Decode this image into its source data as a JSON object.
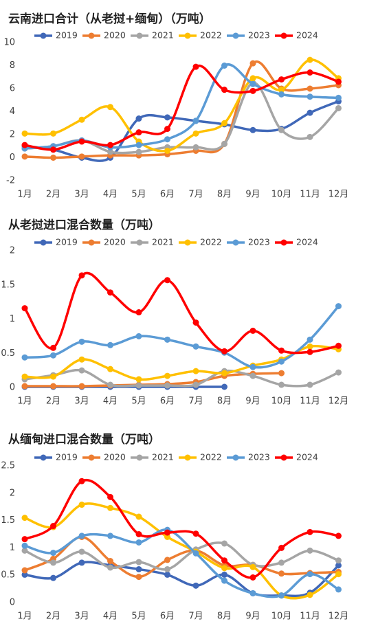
{
  "chart_data": [
    {
      "type": "line",
      "title": "云南进口合计（从老挝+缅甸）（万吨）",
      "categories": [
        "1月",
        "2月",
        "3月",
        "4月",
        "5月",
        "6月",
        "7月",
        "8月",
        "9月",
        "10月",
        "11月",
        "12月"
      ],
      "ylim": [
        -2,
        10
      ],
      "yticks": [
        -2,
        0,
        2,
        4,
        6,
        8,
        10
      ],
      "grid": false,
      "legend": "top",
      "smooth": true,
      "series": [
        {
          "name": "2019",
          "color": "#4068b8",
          "values": [
            1.0,
            0.7,
            0.0,
            0.0,
            3.4,
            3.5,
            3.2,
            2.9,
            2.4,
            2.5,
            3.9,
            4.9
          ]
        },
        {
          "name": "2020",
          "color": "#ed7d31",
          "values": [
            0.1,
            0.0,
            0.1,
            0.2,
            0.2,
            0.3,
            0.6,
            1.2,
            8.2,
            6.0,
            6.0,
            6.3
          ]
        },
        {
          "name": "2021",
          "color": "#a5a5a5",
          "values": [
            0.8,
            1.0,
            1.5,
            0.5,
            0.5,
            0.9,
            0.9,
            1.2,
            6.5,
            2.4,
            1.8,
            4.3
          ]
        },
        {
          "name": "2022",
          "color": "#ffc000",
          "values": [
            2.1,
            2.1,
            3.3,
            4.4,
            1.4,
            0.6,
            2.1,
            3.0,
            6.9,
            5.9,
            8.5,
            6.9
          ]
        },
        {
          "name": "2023",
          "color": "#5b9bd5",
          "values": [
            0.8,
            1.0,
            1.5,
            0.9,
            1.1,
            1.6,
            3.2,
            8.0,
            6.4,
            5.5,
            5.3,
            5.2
          ]
        },
        {
          "name": "2024",
          "color": "#ff0000",
          "values": [
            1.1,
            0.7,
            1.4,
            1.1,
            2.2,
            2.5,
            7.9,
            5.9,
            5.8,
            6.8,
            7.4,
            6.6
          ]
        }
      ]
    },
    {
      "type": "line",
      "title": "从老挝进口混合数量（万吨）",
      "categories": [
        "1月",
        "2月",
        "3月",
        "4月",
        "5月",
        "6月",
        "7月",
        "8月",
        "9月",
        "10月",
        "11月",
        "12月"
      ],
      "ylim": [
        0,
        2
      ],
      "yticks": [
        0,
        0.5,
        1,
        1.5,
        2
      ],
      "grid": false,
      "legend": "top",
      "smooth": true,
      "series": [
        {
          "name": "2019",
          "color": "#4068b8",
          "values": [
            0.01,
            0.01,
            0.01,
            0.01,
            0.01,
            0.01,
            0.01,
            0.01,
            null,
            null,
            null,
            null
          ]
        },
        {
          "name": "2020",
          "color": "#ed7d31",
          "values": [
            0.02,
            0.02,
            0.02,
            0.03,
            0.04,
            0.05,
            0.08,
            0.17,
            0.2,
            0.21,
            null,
            null
          ]
        },
        {
          "name": "2021",
          "color": "#a5a5a5",
          "values": [
            0.12,
            0.18,
            0.25,
            0.04,
            0.03,
            0.03,
            0.04,
            0.24,
            0.17,
            0.04,
            0.04,
            0.22
          ]
        },
        {
          "name": "2022",
          "color": "#ffc000",
          "values": [
            0.16,
            0.16,
            0.41,
            0.27,
            0.12,
            0.17,
            0.24,
            0.21,
            0.32,
            0.41,
            0.6,
            0.56
          ]
        },
        {
          "name": "2023",
          "color": "#5b9bd5",
          "values": [
            0.44,
            0.47,
            0.67,
            0.62,
            0.75,
            0.7,
            0.6,
            0.51,
            0.3,
            0.38,
            0.7,
            1.19
          ]
        },
        {
          "name": "2024",
          "color": "#ff0000",
          "values": [
            1.16,
            0.58,
            1.64,
            1.39,
            1.1,
            1.57,
            0.95,
            0.53,
            0.83,
            0.54,
            0.52,
            0.61
          ]
        }
      ]
    },
    {
      "type": "line",
      "title": "从缅甸进口混合数量（万吨）",
      "categories": [
        "1月",
        "2月",
        "3月",
        "4月",
        "5月",
        "6月",
        "7月",
        "8月",
        "9月",
        "10月",
        "11月",
        "12月"
      ],
      "ylim": [
        0,
        2.5
      ],
      "yticks": [
        0,
        0.5,
        1,
        1.5,
        2,
        2.5
      ],
      "grid": false,
      "legend": "top",
      "smooth": true,
      "series": [
        {
          "name": "2019",
          "color": "#4068b8",
          "values": [
            0.51,
            0.45,
            0.73,
            0.68,
            0.61,
            0.51,
            0.31,
            0.51,
            0.17,
            0.13,
            0.18,
            0.68
          ]
        },
        {
          "name": "2020",
          "color": "#ed7d31",
          "values": [
            0.59,
            0.8,
            1.2,
            0.76,
            0.47,
            0.78,
            0.95,
            0.68,
            0.69,
            0.53,
            0.54,
            0.56
          ]
        },
        {
          "name": "2021",
          "color": "#a5a5a5",
          "values": [
            0.95,
            0.73,
            0.93,
            0.64,
            0.74,
            0.61,
            0.97,
            1.08,
            0.69,
            0.73,
            0.95,
            0.77
          ]
        },
        {
          "name": "2022",
          "color": "#ffc000",
          "values": [
            1.55,
            1.38,
            1.79,
            1.73,
            1.57,
            1.2,
            0.93,
            0.63,
            0.65,
            0.13,
            0.14,
            0.52
          ]
        },
        {
          "name": "2023",
          "color": "#5b9bd5",
          "values": [
            1.04,
            0.91,
            1.22,
            1.22,
            1.1,
            1.33,
            0.9,
            0.4,
            0.17,
            0.13,
            0.52,
            0.24
          ]
        },
        {
          "name": "2024",
          "color": "#ff0000",
          "values": [
            1.16,
            1.4,
            2.22,
            1.93,
            1.25,
            1.28,
            1.26,
            0.77,
            0.46,
            1.0,
            1.29,
            1.22
          ]
        }
      ]
    }
  ]
}
